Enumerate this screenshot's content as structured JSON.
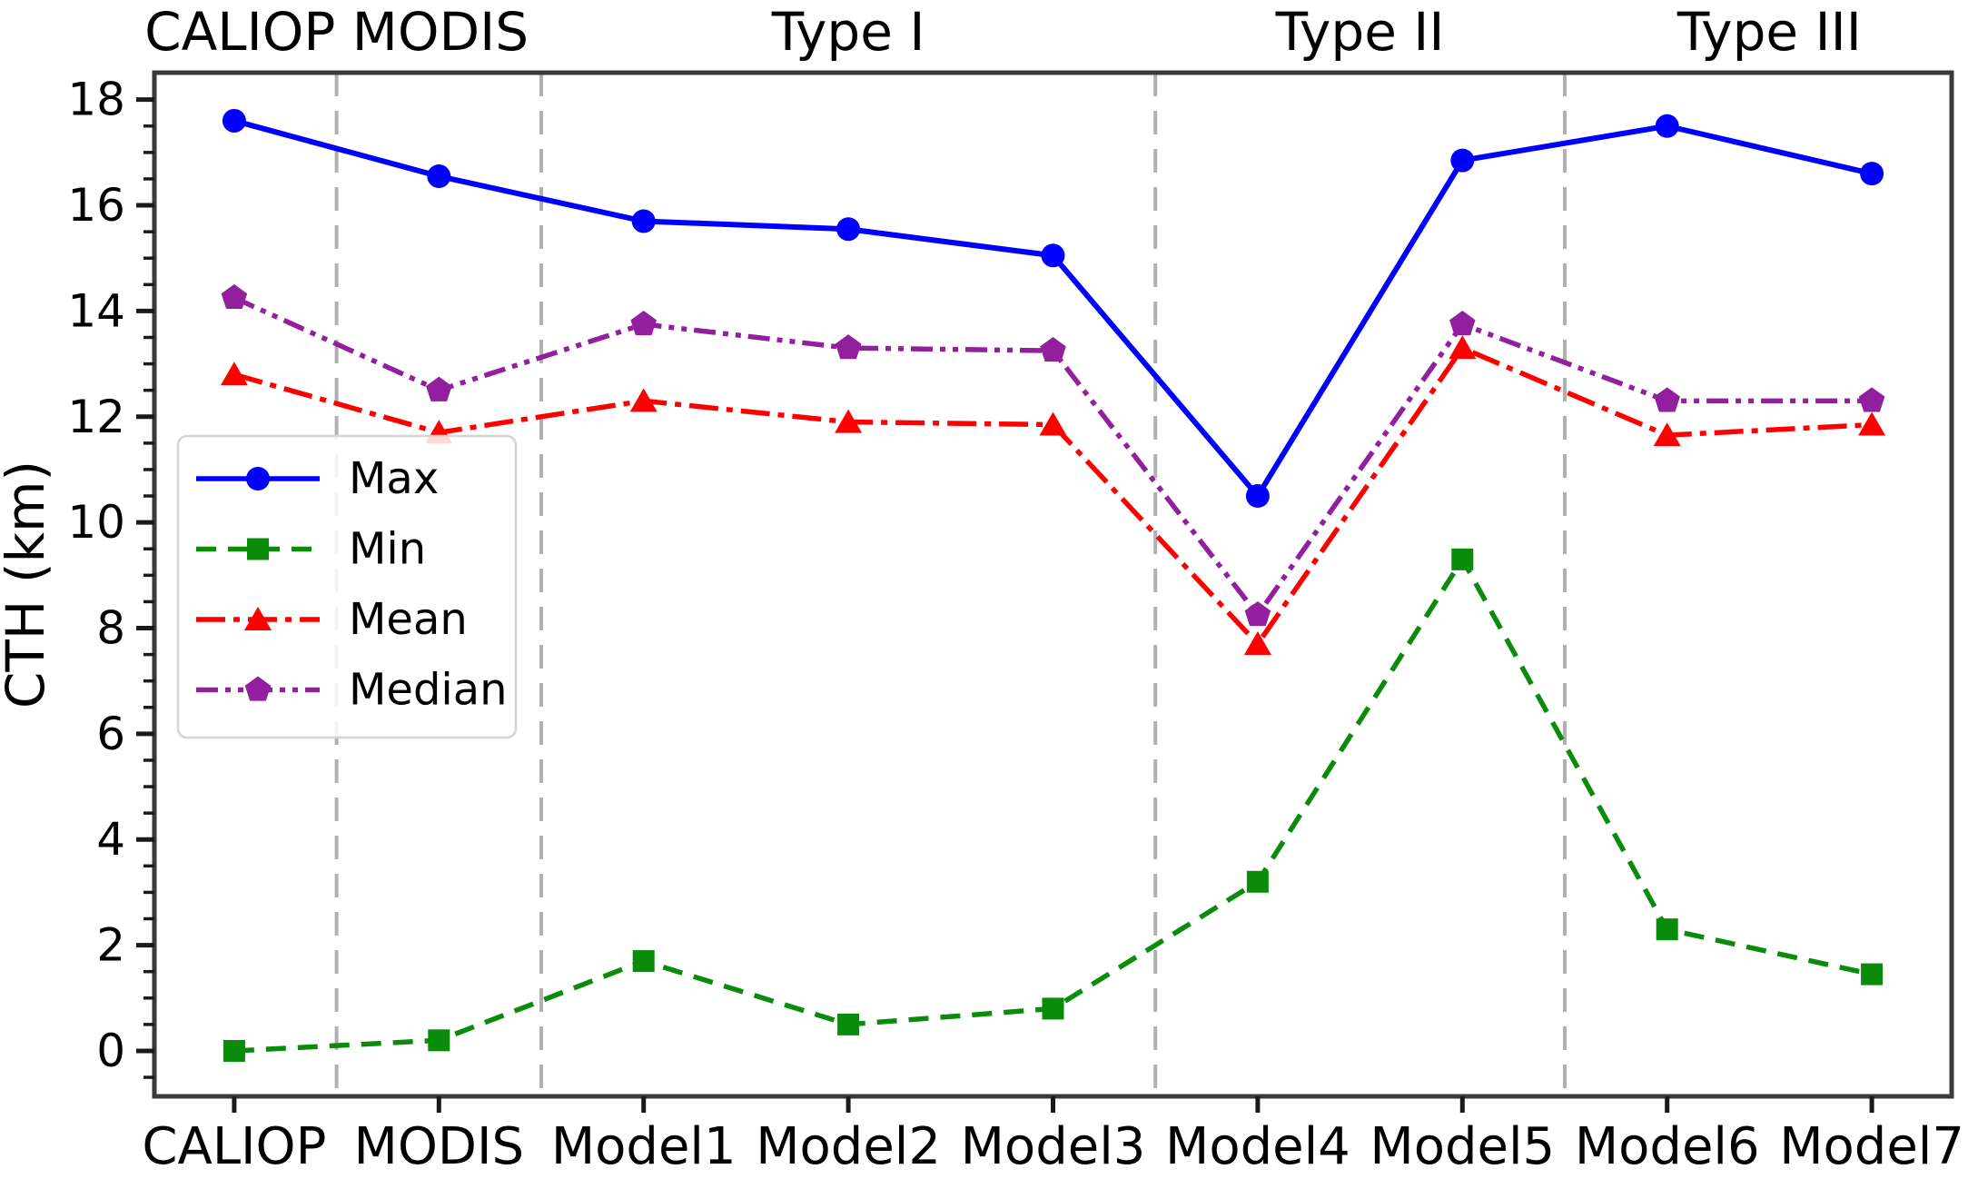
{
  "figure": {
    "background": "#ffffff"
  },
  "chart_data": {
    "type": "line",
    "title": "",
    "xlabel": "",
    "ylabel": "CTH (km)",
    "categories": [
      "CALIOP",
      "MODIS",
      "Model1",
      "Model2",
      "Model3",
      "Model4",
      "Model5",
      "Model6",
      "Model7"
    ],
    "series": [
      {
        "name": "Max",
        "color": "#0000ff",
        "marker": "circle",
        "linestyle": "solid",
        "values": [
          17.6,
          16.55,
          15.7,
          15.55,
          15.05,
          10.5,
          16.85,
          17.5,
          16.6
        ]
      },
      {
        "name": "Min",
        "color": "#0a8c0a",
        "marker": "square",
        "linestyle": "dashed",
        "values": [
          0.0,
          0.2,
          1.7,
          0.5,
          0.8,
          3.2,
          9.3,
          2.3,
          1.45
        ]
      },
      {
        "name": "Mean",
        "color": "#ff0000",
        "marker": "triangle",
        "linestyle": "dashdot",
        "values": [
          12.8,
          11.7,
          12.3,
          11.9,
          11.85,
          7.7,
          13.3,
          11.65,
          11.85
        ]
      },
      {
        "name": "Median",
        "color": "#92209e",
        "marker": "pentagon",
        "linestyle": "dashdotdot",
        "values": [
          14.25,
          12.5,
          13.75,
          13.3,
          13.25,
          8.25,
          13.75,
          12.3,
          12.3
        ]
      }
    ],
    "group_labels": [
      {
        "text": "CALIOP MODIS",
        "from": 0,
        "to": 1
      },
      {
        "text": "Type I",
        "from": 2,
        "to": 4
      },
      {
        "text": "Type II",
        "from": 5,
        "to": 6
      },
      {
        "text": "Type III",
        "from": 7,
        "to": 8
      }
    ],
    "separators_after": [
      0.5,
      1.5,
      4.5,
      6.5
    ],
    "y_axis": {
      "tick_labels": [
        "0",
        "2",
        "4",
        "6",
        "8",
        "10",
        "12",
        "14",
        "16",
        "18"
      ],
      "major_step": 2,
      "minor_step": 0.5
    },
    "ylim": [
      -0.86,
      18.51
    ],
    "xlim": [
      -0.39,
      8.39
    ],
    "legend": {
      "position": "center-left",
      "entries": [
        "Max",
        "Min",
        "Mean",
        "Median"
      ]
    },
    "colors": {
      "group_label": "#828282",
      "spine": "#3a3a3a",
      "tick": "#1a1a1a",
      "separator": "#b0b0b0",
      "legend_border": "#d5d5d5",
      "legend_bg": "rgba(255,255,255,0.85)"
    },
    "grid": false
  }
}
